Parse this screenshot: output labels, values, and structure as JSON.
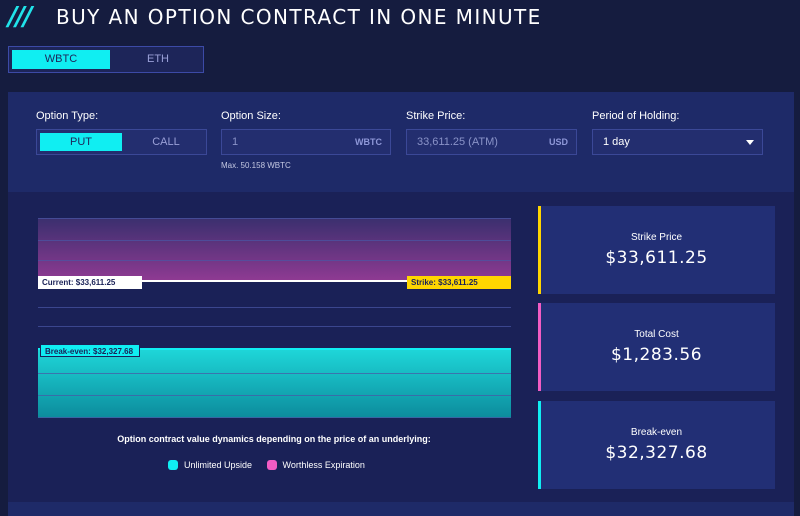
{
  "header": {
    "title": "BUY AN OPTION CONTRACT IN ONE MINUTE",
    "logo_icon": "triple-slash-icon"
  },
  "asset_switch": {
    "options": [
      "WBTC",
      "ETH"
    ],
    "selected": "WBTC"
  },
  "controls": {
    "option_type": {
      "label": "Option Type:",
      "options": [
        "PUT",
        "CALL"
      ],
      "selected": "PUT"
    },
    "option_size": {
      "label": "Option Size:",
      "value": "1",
      "unit": "WBTC",
      "max_note": "Max. 50.158 WBTC"
    },
    "strike_price": {
      "label": "Strike Price:",
      "value": "33,611.25 (ATM)",
      "unit": "USD"
    },
    "period": {
      "label": "Period of Holding:",
      "value": "1 day"
    }
  },
  "chart": {
    "current_label": "Current: $33,611.25",
    "strike_label": "Strike: $33,611.25",
    "breakeven_label": "Break-even: $32,327.68",
    "caption": "Option contract value dynamics depending on the price of an underlying:",
    "legend": [
      {
        "name": "Unlimited Upside",
        "color": "#10eef2"
      },
      {
        "name": "Worthless Expiration",
        "color": "#f25cc4"
      }
    ]
  },
  "cards": [
    {
      "label": "Strike Price",
      "value": "$33,611.25",
      "accent": "#ffd600"
    },
    {
      "label": "Total Cost",
      "value": "$1,283.56",
      "accent": "#f25cc4"
    },
    {
      "label": "Break-even",
      "value": "$32,327.68",
      "accent": "#10eef2"
    }
  ]
}
